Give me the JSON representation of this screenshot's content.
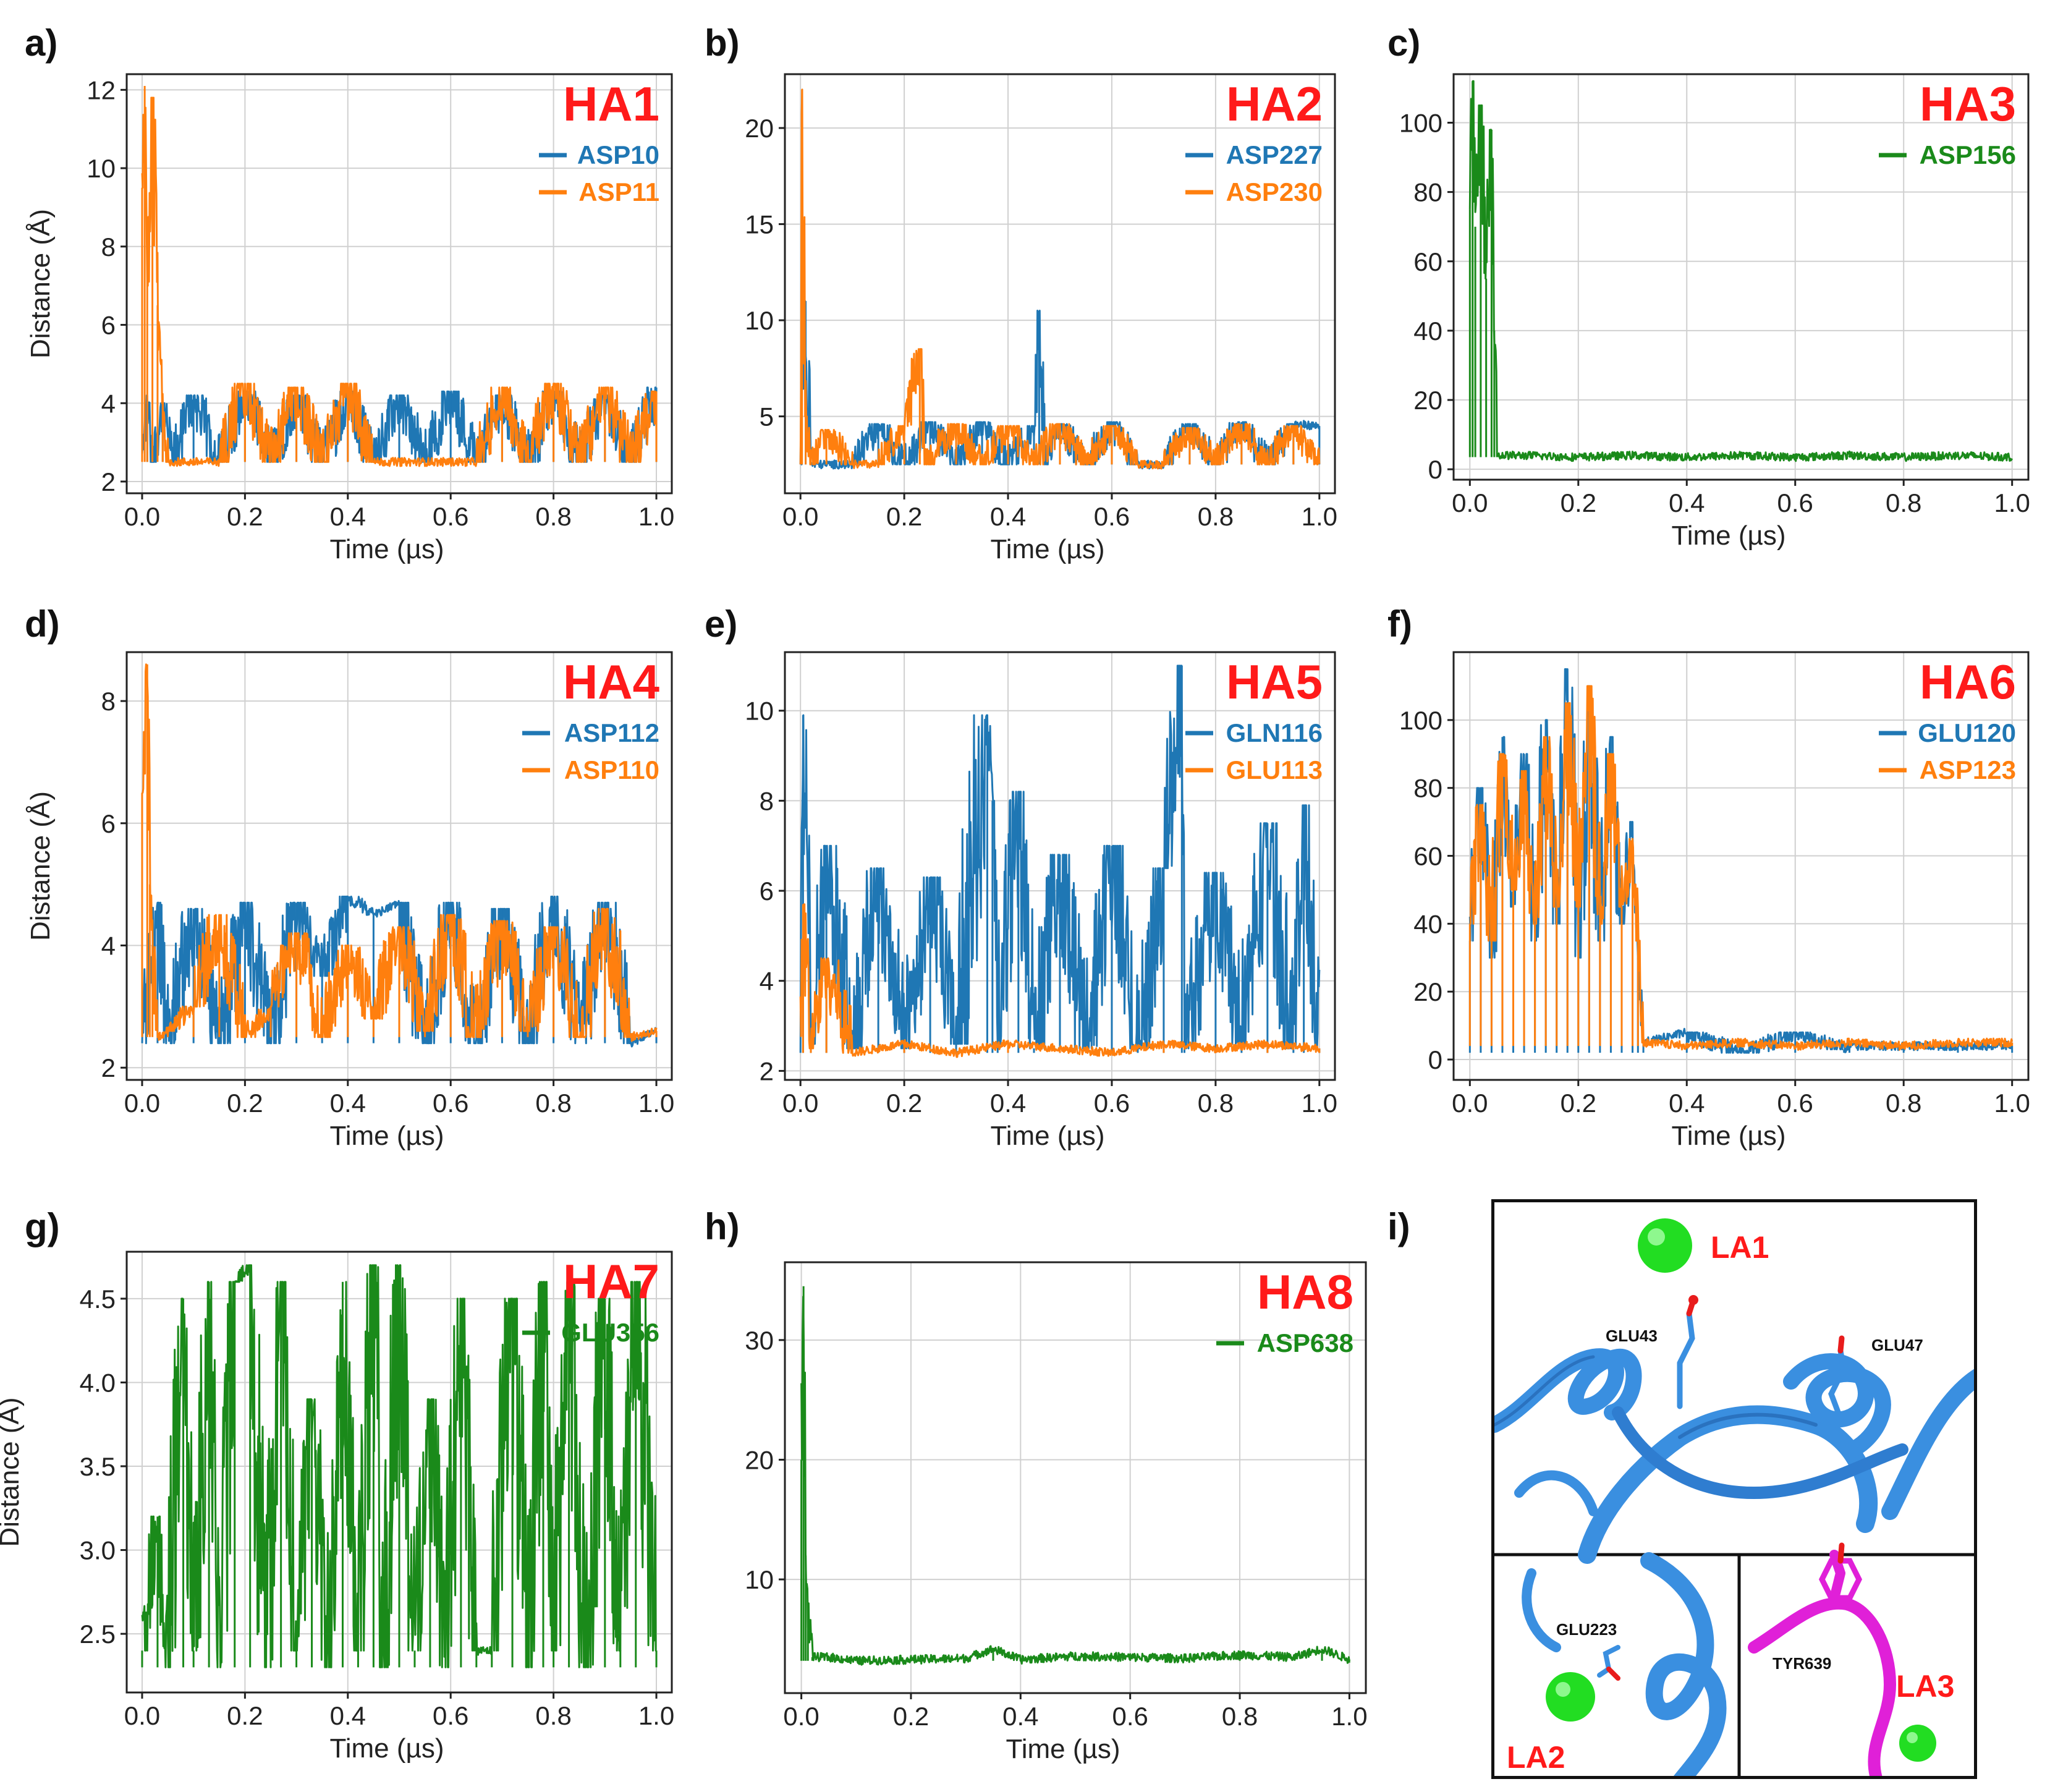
{
  "figure": {
    "panel_labels": [
      "a)",
      "b)",
      "c)",
      "d)",
      "e)",
      "f)",
      "g)",
      "h)",
      "i)"
    ],
    "colors": {
      "blue": "#1f77b4",
      "orange": "#ff7f0e",
      "green": "#1a8a1a",
      "red_title": "#ff1a1a",
      "grid": "#d0d0d0",
      "ribbon": "#3a8fe0",
      "ribbon_dark": "#1f5fa8",
      "magenta": "#e020d8",
      "ion_green": "#22dd22"
    }
  },
  "chart_data": [
    {
      "panel": "a)",
      "type": "line",
      "title": "HA1",
      "xlabel": "Time (µs)",
      "ylabel": "Distance (Å)",
      "xlim": [
        -0.03,
        1.03
      ],
      "ylim": [
        1.7,
        12.4
      ],
      "xticks": [
        0.0,
        0.2,
        0.4,
        0.6,
        0.8,
        1.0
      ],
      "xtick_labels": [
        "0.0",
        "0.2",
        "0.4",
        "0.6",
        "0.8",
        "1.0"
      ],
      "yticks": [
        2,
        4,
        6,
        8,
        10,
        12
      ],
      "ytick_labels": [
        "2",
        "4",
        "6",
        "8",
        "10",
        "12"
      ],
      "grid": true,
      "legend_position": "top-right",
      "series": [
        {
          "name": "ASP10",
          "color": "#1f77b4",
          "x": [
            0,
            0.01,
            0.02,
            0.04,
            0.06,
            0.1,
            0.15,
            0.2,
            0.25,
            0.3,
            0.35,
            0.4,
            0.45,
            0.5,
            0.55,
            0.6,
            0.65,
            0.7,
            0.75,
            0.8,
            0.85,
            0.9,
            0.95,
            1.0
          ],
          "y": [
            2.5,
            4.2,
            2.5,
            4.0,
            2.5,
            4.2,
            2.5,
            4.3,
            2.5,
            4.2,
            2.5,
            4.3,
            2.5,
            4.2,
            2.5,
            4.3,
            2.5,
            4.2,
            2.5,
            4.3,
            2.5,
            4.2,
            2.5,
            4.4
          ]
        },
        {
          "name": "ASP11",
          "color": "#ff7f0e",
          "x": [
            0,
            0.005,
            0.01,
            0.02,
            0.03,
            0.04,
            0.05,
            0.1,
            0.15,
            0.2,
            0.25,
            0.3,
            0.35,
            0.4,
            0.45,
            0.5,
            0.55,
            0.6,
            0.65,
            0.7,
            0.75,
            0.8,
            0.85,
            0.9,
            0.95,
            1.0
          ],
          "y": [
            9.5,
            12.1,
            7.0,
            11.8,
            6.5,
            4.0,
            2.5,
            2.5,
            2.5,
            4.5,
            2.5,
            4.4,
            2.5,
            4.5,
            2.5,
            2.5,
            2.5,
            2.5,
            2.5,
            4.4,
            2.5,
            4.5,
            2.5,
            4.4,
            2.5,
            4.3
          ]
        }
      ]
    },
    {
      "panel": "b)",
      "type": "line",
      "title": "HA2",
      "xlabel": "Time (µs)",
      "ylabel": "",
      "xlim": [
        -0.03,
        1.03
      ],
      "ylim": [
        1.0,
        22.8
      ],
      "xticks": [
        0.0,
        0.2,
        0.4,
        0.6,
        0.8,
        1.0
      ],
      "xtick_labels": [
        "0.0",
        "0.2",
        "0.4",
        "0.6",
        "0.8",
        "1.0"
      ],
      "yticks": [
        5,
        10,
        15,
        20
      ],
      "ytick_labels": [
        "5",
        "10",
        "15",
        "20"
      ],
      "grid": true,
      "legend_position": "top-right",
      "series": [
        {
          "name": "ASP227",
          "color": "#1f77b4",
          "x": [
            0,
            0.01,
            0.02,
            0.05,
            0.1,
            0.15,
            0.2,
            0.25,
            0.3,
            0.35,
            0.4,
            0.45,
            0.46,
            0.47,
            0.5,
            0.55,
            0.6,
            0.65,
            0.7,
            0.75,
            0.8,
            0.85,
            0.9,
            0.95,
            1.0
          ],
          "y": [
            2.5,
            11.0,
            2.5,
            2.5,
            2.5,
            4.6,
            2.5,
            4.7,
            2.5,
            4.7,
            2.5,
            4.5,
            10.5,
            2.5,
            4.6,
            2.5,
            4.7,
            2.5,
            2.5,
            4.6,
            2.5,
            4.7,
            2.5,
            4.6,
            4.5
          ]
        },
        {
          "name": "ASP230",
          "color": "#ff7f0e",
          "x": [
            0,
            0.003,
            0.01,
            0.02,
            0.05,
            0.1,
            0.15,
            0.2,
            0.23,
            0.24,
            0.3,
            0.35,
            0.4,
            0.45,
            0.5,
            0.55,
            0.6,
            0.65,
            0.7,
            0.75,
            0.8,
            0.85,
            0.9,
            0.95,
            1.0
          ],
          "y": [
            2.5,
            22.0,
            5.0,
            2.5,
            4.3,
            2.5,
            2.5,
            4.5,
            8.5,
            2.5,
            4.6,
            2.5,
            4.5,
            2.5,
            4.6,
            2.5,
            4.5,
            2.5,
            2.5,
            4.4,
            2.5,
            4.6,
            2.5,
            4.5,
            2.5
          ]
        }
      ]
    },
    {
      "panel": "c)",
      "type": "line",
      "title": "HA3",
      "xlabel": "Time (µs)",
      "ylabel": "",
      "xlim": [
        -0.03,
        1.03
      ],
      "ylim": [
        -3,
        114
      ],
      "xticks": [
        0.0,
        0.2,
        0.4,
        0.6,
        0.8,
        1.0
      ],
      "xtick_labels": [
        "0.0",
        "0.2",
        "0.4",
        "0.6",
        "0.8",
        "1.0"
      ],
      "yticks": [
        0,
        20,
        40,
        60,
        80,
        100
      ],
      "ytick_labels": [
        "0",
        "20",
        "40",
        "60",
        "80",
        "100"
      ],
      "grid": true,
      "legend_position": "top-right",
      "series": [
        {
          "name": "ASP156",
          "color": "#1a8a1a",
          "x": [
            0,
            0.005,
            0.01,
            0.02,
            0.03,
            0.04,
            0.045,
            0.05,
            0.1,
            0.2,
            0.3,
            0.4,
            0.5,
            0.6,
            0.7,
            0.8,
            0.9,
            1.0
          ],
          "y": [
            75,
            112,
            70,
            105,
            55,
            98,
            40,
            4,
            4,
            3.5,
            4,
            3.5,
            4,
            3.5,
            4,
            3.5,
            4,
            3.5
          ]
        }
      ]
    },
    {
      "panel": "d)",
      "type": "line",
      "title": "HA4",
      "xlabel": "Time (µs)",
      "ylabel": "Distance (Å)",
      "xlim": [
        -0.03,
        1.03
      ],
      "ylim": [
        1.8,
        8.8
      ],
      "xticks": [
        0.0,
        0.2,
        0.4,
        0.6,
        0.8,
        1.0
      ],
      "xtick_labels": [
        "0.0",
        "0.2",
        "0.4",
        "0.6",
        "0.8",
        "1.0"
      ],
      "yticks": [
        2,
        4,
        6,
        8
      ],
      "ytick_labels": [
        "2",
        "4",
        "6",
        "8"
      ],
      "grid": true,
      "legend_position": "top-right",
      "series": [
        {
          "name": "ASP112",
          "color": "#1f77b4",
          "x": [
            0,
            0.03,
            0.05,
            0.1,
            0.15,
            0.2,
            0.25,
            0.3,
            0.35,
            0.4,
            0.45,
            0.5,
            0.55,
            0.6,
            0.65,
            0.7,
            0.75,
            0.8,
            0.85,
            0.9,
            0.95,
            1.0
          ],
          "y": [
            2.4,
            4.7,
            2.4,
            4.6,
            2.4,
            4.7,
            2.4,
            4.7,
            3.5,
            4.8,
            4.5,
            4.7,
            2.4,
            4.7,
            2.4,
            4.6,
            2.4,
            4.8,
            2.4,
            4.7,
            2.4,
            2.6
          ]
        },
        {
          "name": "ASP110",
          "color": "#ff7f0e",
          "x": [
            0,
            0.01,
            0.015,
            0.02,
            0.03,
            0.05,
            0.1,
            0.15,
            0.2,
            0.25,
            0.3,
            0.35,
            0.4,
            0.45,
            0.5,
            0.55,
            0.6,
            0.65,
            0.7,
            0.75,
            0.8,
            0.85,
            0.9,
            0.95,
            1.0
          ],
          "y": [
            6.5,
            8.6,
            5.0,
            4.0,
            2.5,
            2.6,
            3.0,
            4.5,
            2.5,
            3.0,
            4.2,
            2.5,
            4.0,
            2.8,
            4.3,
            2.6,
            4.5,
            2.5,
            4.4,
            2.6,
            4.3,
            2.5,
            4.6,
            2.5,
            2.6
          ]
        }
      ]
    },
    {
      "panel": "e)",
      "type": "line",
      "title": "HA5",
      "xlabel": "Time (µs)",
      "ylabel": "",
      "xlim": [
        -0.03,
        1.03
      ],
      "ylim": [
        1.8,
        11.3
      ],
      "xticks": [
        0.0,
        0.2,
        0.4,
        0.6,
        0.8,
        1.0
      ],
      "xtick_labels": [
        "0.0",
        "0.2",
        "0.4",
        "0.6",
        "0.8",
        "1.0"
      ],
      "yticks": [
        2,
        4,
        6,
        8,
        10
      ],
      "ytick_labels": [
        "2",
        "4",
        "6",
        "8",
        "10"
      ],
      "grid": true,
      "legend_position": "top-right",
      "series": [
        {
          "name": "GLN116",
          "color": "#1f77b4",
          "x": [
            0,
            0.005,
            0.02,
            0.05,
            0.1,
            0.15,
            0.2,
            0.25,
            0.3,
            0.36,
            0.37,
            0.38,
            0.42,
            0.45,
            0.5,
            0.55,
            0.6,
            0.65,
            0.7,
            0.735,
            0.74,
            0.8,
            0.85,
            0.9,
            0.95,
            0.97,
            1.0
          ],
          "y": [
            2.4,
            9.9,
            2.6,
            7.0,
            2.5,
            6.5,
            2.5,
            6.3,
            2.6,
            9.9,
            8.0,
            2.6,
            8.2,
            2.5,
            6.8,
            2.5,
            7.0,
            2.5,
            6.5,
            11.0,
            2.5,
            6.4,
            2.6,
            7.5,
            2.5,
            7.9,
            2.5
          ]
        },
        {
          "name": "GLU113",
          "color": "#ff7f0e",
          "x": [
            0,
            0.005,
            0.02,
            0.05,
            0.1,
            0.15,
            0.2,
            0.3,
            0.4,
            0.5,
            0.6,
            0.7,
            0.8,
            0.9,
            1.0
          ],
          "y": [
            2.4,
            5.7,
            2.5,
            4.5,
            2.4,
            2.5,
            2.6,
            2.4,
            2.6,
            2.5,
            2.4,
            2.6,
            2.5,
            2.6,
            2.5
          ]
        }
      ]
    },
    {
      "panel": "f)",
      "type": "line",
      "title": "HA6",
      "xlabel": "Time (µs)",
      "ylabel": "",
      "xlim": [
        -0.03,
        1.03
      ],
      "ylim": [
        -6,
        120
      ],
      "xticks": [
        0.0,
        0.2,
        0.4,
        0.6,
        0.8,
        1.0
      ],
      "xtick_labels": [
        "0.0",
        "0.2",
        "0.4",
        "0.6",
        "0.8",
        "1.0"
      ],
      "yticks": [
        0,
        20,
        40,
        60,
        80,
        100
      ],
      "ytick_labels": [
        "0",
        "20",
        "40",
        "60",
        "80",
        "100"
      ],
      "grid": true,
      "legend_position": "top-right",
      "series": [
        {
          "name": "GLU120",
          "color": "#1f77b4",
          "x": [
            0,
            0.02,
            0.04,
            0.06,
            0.08,
            0.1,
            0.12,
            0.14,
            0.16,
            0.18,
            0.2,
            0.22,
            0.24,
            0.26,
            0.28,
            0.3,
            0.31,
            0.32,
            0.4,
            0.5,
            0.6,
            0.69,
            0.7,
            0.8,
            0.9,
            1.0
          ],
          "y": [
            35,
            80,
            30,
            95,
            45,
            90,
            35,
            100,
            40,
            115,
            30,
            110,
            35,
            95,
            40,
            70,
            30,
            5,
            8,
            2,
            8,
            3,
            4,
            4,
            4,
            4
          ]
        },
        {
          "name": "ASP123",
          "color": "#ff7f0e",
          "x": [
            0,
            0.02,
            0.04,
            0.06,
            0.08,
            0.1,
            0.12,
            0.14,
            0.16,
            0.18,
            0.2,
            0.22,
            0.24,
            0.26,
            0.28,
            0.3,
            0.31,
            0.32,
            0.4,
            0.5,
            0.6,
            0.7,
            0.8,
            0.9,
            1.0
          ],
          "y": [
            40,
            75,
            35,
            90,
            50,
            85,
            40,
            95,
            45,
            105,
            45,
            110,
            40,
            90,
            45,
            65,
            35,
            5,
            4,
            5,
            4,
            5,
            4,
            5,
            5
          ]
        }
      ]
    },
    {
      "panel": "g)",
      "type": "line",
      "title": "HA7",
      "xlabel": "Time (µs)",
      "ylabel": "Distance (Å)",
      "xlim": [
        -0.03,
        1.03
      ],
      "ylim": [
        2.15,
        4.78
      ],
      "xticks": [
        0.0,
        0.2,
        0.4,
        0.6,
        0.8,
        1.0
      ],
      "xtick_labels": [
        "0.0",
        "0.2",
        "0.4",
        "0.6",
        "0.8",
        "1.0"
      ],
      "yticks": [
        2.5,
        3.0,
        3.5,
        4.0,
        4.5
      ],
      "ytick_labels": [
        "2.5",
        "3.0",
        "3.5",
        "4.0",
        "4.5"
      ],
      "grid": true,
      "legend_position": "top-right",
      "series": [
        {
          "name": "GLU356",
          "color": "#1a8a1a",
          "x": [
            0,
            0.03,
            0.05,
            0.08,
            0.1,
            0.13,
            0.15,
            0.18,
            0.21,
            0.24,
            0.27,
            0.3,
            0.33,
            0.36,
            0.39,
            0.42,
            0.45,
            0.47,
            0.5,
            0.53,
            0.56,
            0.59,
            0.62,
            0.65,
            0.68,
            0.72,
            0.75,
            0.78,
            0.8,
            0.83,
            0.86,
            0.9,
            0.93,
            0.96,
            1.0
          ],
          "y": [
            2.4,
            3.2,
            2.3,
            4.5,
            2.4,
            4.6,
            2.3,
            4.6,
            4.7,
            2.3,
            4.6,
            2.4,
            3.9,
            2.3,
            4.6,
            2.4,
            4.7,
            2.3,
            4.7,
            2.4,
            3.9,
            2.3,
            4.5,
            2.4,
            2.4,
            4.5,
            2.3,
            4.6,
            2.4,
            4.6,
            2.3,
            4.5,
            2.4,
            4.6,
            2.4
          ]
        }
      ]
    },
    {
      "panel": "h)",
      "type": "line",
      "title": "HA8",
      "xlabel": "Time (µs)",
      "ylabel": "",
      "xlim": [
        -0.03,
        1.03
      ],
      "ylim": [
        0.5,
        36.5
      ],
      "xticks": [
        0.0,
        0.2,
        0.4,
        0.6,
        0.8,
        1.0
      ],
      "xtick_labels": [
        "0.0",
        "0.2",
        "0.4",
        "0.6",
        "0.8",
        "1.0"
      ],
      "yticks": [
        10,
        20,
        30
      ],
      "ytick_labels": [
        "10",
        "20",
        "30"
      ],
      "grid": true,
      "legend_position": "top-right",
      "series": [
        {
          "name": "ASP638",
          "color": "#1a8a1a",
          "x": [
            0,
            0.004,
            0.008,
            0.012,
            0.02,
            0.05,
            0.1,
            0.2,
            0.3,
            0.35,
            0.4,
            0.5,
            0.6,
            0.7,
            0.8,
            0.9,
            0.95,
            1.0
          ],
          "y": [
            20,
            34.5,
            12,
            8,
            3.5,
            3.5,
            3.2,
            3.3,
            3.4,
            4.2,
            3.3,
            3.6,
            3.5,
            3.4,
            3.7,
            3.5,
            4.2,
            3.3
          ]
        }
      ]
    }
  ],
  "structure_panel": {
    "labels": {
      "la1": "LA1",
      "la2": "LA2",
      "la3": "LA3",
      "glu43": "GLU43",
      "glu47": "GLU47",
      "glu223": "GLU223",
      "tyr639": "TYR639"
    }
  }
}
